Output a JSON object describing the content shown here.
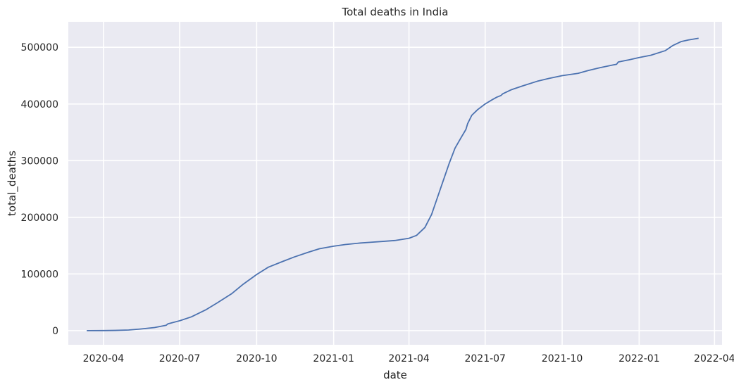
{
  "chart_data": {
    "type": "line",
    "title": "Total deaths in India",
    "xlabel": "date",
    "ylabel": "total_deaths",
    "x_ticks": [
      "2020-04",
      "2020-07",
      "2020-10",
      "2021-01",
      "2021-04",
      "2021-07",
      "2021-10",
      "2022-01",
      "2022-04"
    ],
    "y_ticks": [
      0,
      100000,
      200000,
      300000,
      400000,
      500000
    ],
    "xlim": [
      "2020-02-19",
      "2022-04-10"
    ],
    "ylim": [
      -25000,
      545000
    ],
    "grid": true,
    "colors": {
      "line": "#4c72b0",
      "background": "#eaeaf2",
      "grid": "#ffffff"
    },
    "series": [
      {
        "points": [
          [
            "2020-03-12",
            1
          ],
          [
            "2020-04-01",
            50
          ],
          [
            "2020-04-15",
            400
          ],
          [
            "2020-05-01",
            1100
          ],
          [
            "2020-05-15",
            2800
          ],
          [
            "2020-06-01",
            5400
          ],
          [
            "2020-06-15",
            9500
          ],
          [
            "2020-06-17",
            12000
          ],
          [
            "2020-07-01",
            17400
          ],
          [
            "2020-07-15",
            24300
          ],
          [
            "2020-08-01",
            36500
          ],
          [
            "2020-08-15",
            49000
          ],
          [
            "2020-09-01",
            65000
          ],
          [
            "2020-09-15",
            82000
          ],
          [
            "2020-10-01",
            99000
          ],
          [
            "2020-10-15",
            112000
          ],
          [
            "2020-11-01",
            122000
          ],
          [
            "2020-11-15",
            130000
          ],
          [
            "2020-12-01",
            138000
          ],
          [
            "2020-12-15",
            144500
          ],
          [
            "2021-01-01",
            149000
          ],
          [
            "2021-01-15",
            152000
          ],
          [
            "2021-02-01",
            154500
          ],
          [
            "2021-02-15",
            156000
          ],
          [
            "2021-03-01",
            157500
          ],
          [
            "2021-03-15",
            159000
          ],
          [
            "2021-04-01",
            163000
          ],
          [
            "2021-04-10",
            168000
          ],
          [
            "2021-04-20",
            182000
          ],
          [
            "2021-04-28",
            205000
          ],
          [
            "2021-05-05",
            235000
          ],
          [
            "2021-05-12",
            265000
          ],
          [
            "2021-05-19",
            295000
          ],
          [
            "2021-05-26",
            322000
          ],
          [
            "2021-06-02",
            340000
          ],
          [
            "2021-06-08",
            355000
          ],
          [
            "2021-06-10",
            365000
          ],
          [
            "2021-06-15",
            380000
          ],
          [
            "2021-06-22",
            390000
          ],
          [
            "2021-07-01",
            400000
          ],
          [
            "2021-07-10",
            408000
          ],
          [
            "2021-07-15",
            412000
          ],
          [
            "2021-07-20",
            415000
          ],
          [
            "2021-07-22",
            418000
          ],
          [
            "2021-08-01",
            425000
          ],
          [
            "2021-08-15",
            432000
          ],
          [
            "2021-09-01",
            440000
          ],
          [
            "2021-09-15",
            445000
          ],
          [
            "2021-10-01",
            450000
          ],
          [
            "2021-10-20",
            454000
          ],
          [
            "2021-11-01",
            459000
          ],
          [
            "2021-11-15",
            464000
          ],
          [
            "2021-12-01",
            469000
          ],
          [
            "2021-12-05",
            470000
          ],
          [
            "2021-12-07",
            474000
          ],
          [
            "2021-12-20",
            478000
          ],
          [
            "2022-01-01",
            482000
          ],
          [
            "2022-01-15",
            486000
          ],
          [
            "2022-02-01",
            494000
          ],
          [
            "2022-02-10",
            503000
          ],
          [
            "2022-02-20",
            510000
          ],
          [
            "2022-03-01",
            513000
          ],
          [
            "2022-03-13",
            516000
          ]
        ]
      }
    ]
  }
}
